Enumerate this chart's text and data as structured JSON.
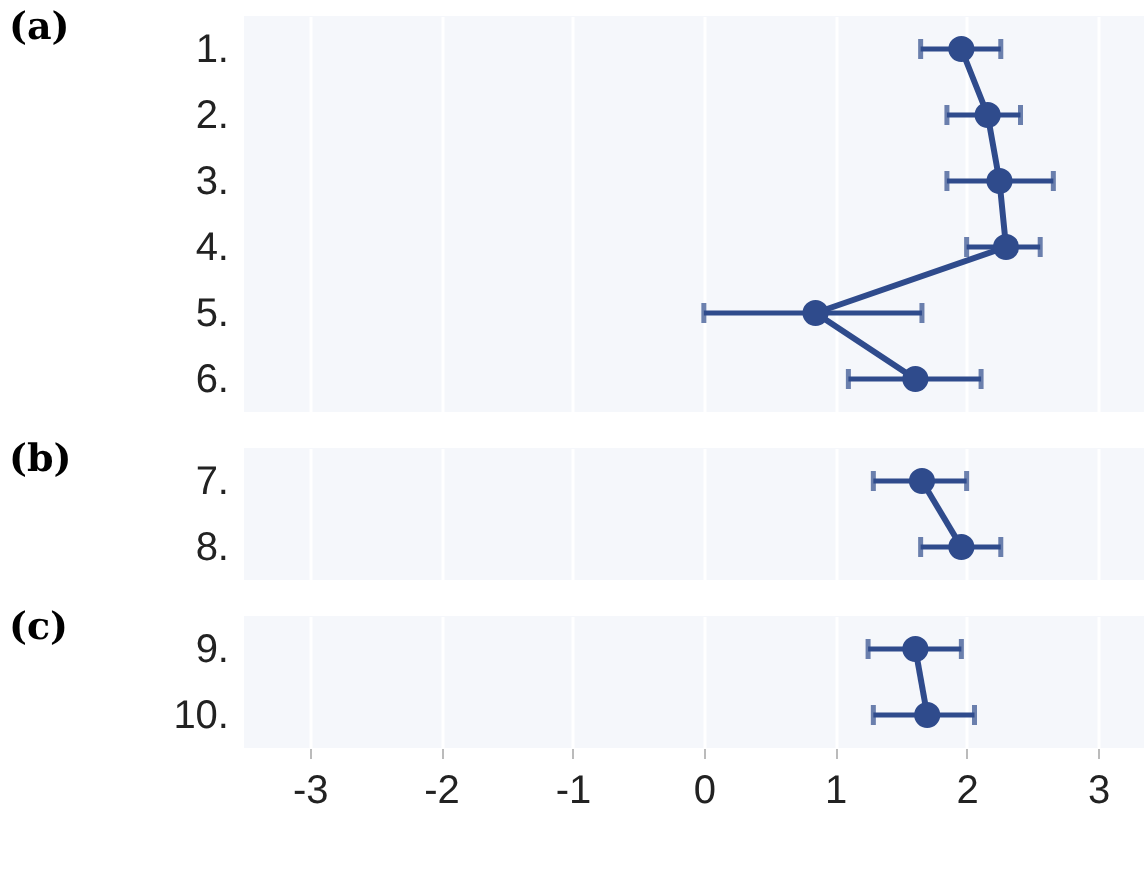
{
  "chart_data": [
    {
      "type": "line",
      "orientation": "horizontal",
      "title": "(a)",
      "categories": [
        "1.",
        "2.",
        "3.",
        "4.",
        "5.",
        "6."
      ],
      "series": [
        {
          "color": "#2f4b8c",
          "values": [
            1.96,
            2.16,
            2.25,
            2.3,
            0.85,
            1.61
          ],
          "errors": [
            [
              1.65,
              2.26
            ],
            [
              1.85,
              2.41
            ],
            [
              1.85,
              2.66
            ],
            [
              2.0,
              2.56
            ],
            [
              0.0,
              1.66
            ],
            [
              1.1,
              2.11
            ]
          ]
        }
      ],
      "marker": "circle",
      "xlim": [
        -3.5,
        3.35
      ],
      "xticks": [
        -3,
        -2,
        -1,
        0,
        1,
        2,
        3
      ],
      "grid": "x",
      "tick_labels": "y"
    },
    {
      "type": "line",
      "orientation": "horizontal",
      "title": "(b)",
      "categories": [
        "7.",
        "8."
      ],
      "series": [
        {
          "color": "#2f4b8c",
          "values": [
            1.66,
            1.96
          ],
          "errors": [
            [
              1.29,
              2.0
            ],
            [
              1.65,
              2.26
            ]
          ]
        }
      ],
      "marker": "circle",
      "xlim": [
        -3.5,
        3.35
      ],
      "xticks": [
        -3,
        -2,
        -1,
        0,
        1,
        2,
        3
      ],
      "grid": "x",
      "tick_labels": "y"
    },
    {
      "type": "line",
      "orientation": "horizontal",
      "title": "(c)",
      "categories": [
        "9.",
        "10."
      ],
      "series": [
        {
          "color": "#2f4b8c",
          "values": [
            1.61,
            1.7
          ],
          "errors": [
            [
              1.25,
              1.96
            ],
            [
              1.29,
              2.06
            ]
          ]
        }
      ],
      "marker": "circle",
      "xlim": [
        -3.5,
        3.35
      ],
      "xticks": [
        -3,
        -2,
        -1,
        0,
        1,
        2,
        3
      ],
      "grid": "x"
    }
  ]
}
